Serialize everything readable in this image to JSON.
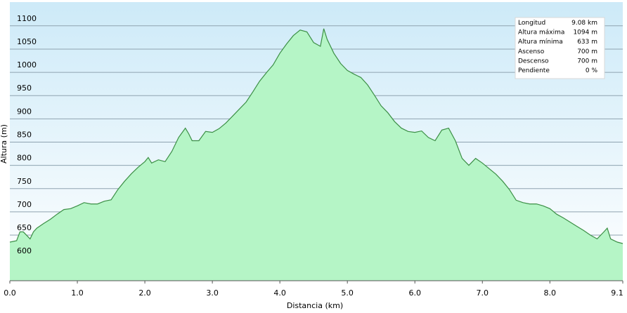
{
  "chart_data": {
    "type": "area",
    "xlabel": "Distancia  (km)",
    "ylabel": "Altura (m)",
    "color": "#b5f5c6",
    "line_color": "#3c8f46",
    "grid": true,
    "xlim": [
      0,
      9.08
    ],
    "ylim": [
      552,
      1151
    ],
    "xticks": [
      {
        "value": 0,
        "label": "0.0"
      },
      {
        "value": 1,
        "label": "1.0"
      },
      {
        "value": 2,
        "label": "2.0"
      },
      {
        "value": 3,
        "label": "3.0"
      },
      {
        "value": 4,
        "label": "4.0"
      },
      {
        "value": 5,
        "label": "5.0"
      },
      {
        "value": 6,
        "label": "6.0"
      },
      {
        "value": 7,
        "label": "7.0"
      },
      {
        "value": 8,
        "label": "8.0"
      },
      {
        "value": 9.08,
        "label": "9.1"
      }
    ],
    "yticks": [
      600,
      650,
      700,
      750,
      800,
      850,
      900,
      950,
      1000,
      1050,
      1100
    ],
    "x": [
      0,
      0.1,
      0.15,
      0.2,
      0.3,
      0.35,
      0.4,
      0.5,
      0.6,
      0.7,
      0.8,
      0.9,
      1.0,
      1.1,
      1.2,
      1.3,
      1.4,
      1.5,
      1.6,
      1.7,
      1.8,
      1.9,
      2.0,
      2.05,
      2.1,
      2.2,
      2.3,
      2.4,
      2.5,
      2.6,
      2.65,
      2.7,
      2.8,
      2.9,
      3.0,
      3.1,
      3.2,
      3.3,
      3.4,
      3.5,
      3.6,
      3.7,
      3.8,
      3.9,
      4.0,
      4.1,
      4.2,
      4.3,
      4.4,
      4.5,
      4.6,
      4.65,
      4.7,
      4.8,
      4.9,
      5.0,
      5.1,
      5.2,
      5.3,
      5.4,
      5.5,
      5.6,
      5.7,
      5.8,
      5.9,
      6.0,
      6.1,
      6.2,
      6.3,
      6.4,
      6.5,
      6.6,
      6.7,
      6.8,
      6.9,
      7.0,
      7.1,
      7.2,
      7.3,
      7.4,
      7.5,
      7.6,
      7.7,
      7.8,
      7.9,
      8.0,
      8.1,
      8.2,
      8.3,
      8.4,
      8.5,
      8.6,
      8.7,
      8.8,
      8.85,
      8.9,
      9.0,
      9.08
    ],
    "values": [
      635,
      638,
      657,
      657,
      642,
      657,
      665,
      675,
      684,
      695,
      705,
      707,
      713,
      720,
      717,
      717,
      723,
      726,
      748,
      766,
      782,
      796,
      808,
      817,
      805,
      812,
      808,
      830,
      860,
      880,
      868,
      853,
      853,
      873,
      871,
      879,
      891,
      906,
      921,
      936,
      958,
      981,
      999,
      1016,
      1041,
      1061,
      1079,
      1091,
      1087,
      1064,
      1056,
      1094,
      1071,
      1041,
      1019,
      1004,
      996,
      989,
      973,
      951,
      928,
      913,
      894,
      880,
      873,
      871,
      874,
      860,
      853,
      876,
      880,
      853,
      815,
      800,
      815,
      805,
      793,
      781,
      766,
      748,
      725,
      720,
      717,
      717,
      713,
      707,
      695,
      687,
      678,
      669,
      660,
      650,
      642,
      657,
      665,
      642,
      635,
      632
    ],
    "stats": [
      {
        "label": "Longitud",
        "value": "9.08 km"
      },
      {
        "label": "Altura máxima",
        "value": "1094 m"
      },
      {
        "label": "Altura mínima",
        "value": "633 m"
      },
      {
        "label": "Ascenso",
        "value": "700 m"
      },
      {
        "label": "Descenso",
        "value": "700 m"
      },
      {
        "label": "Pendiente",
        "value": "0 %"
      }
    ]
  }
}
